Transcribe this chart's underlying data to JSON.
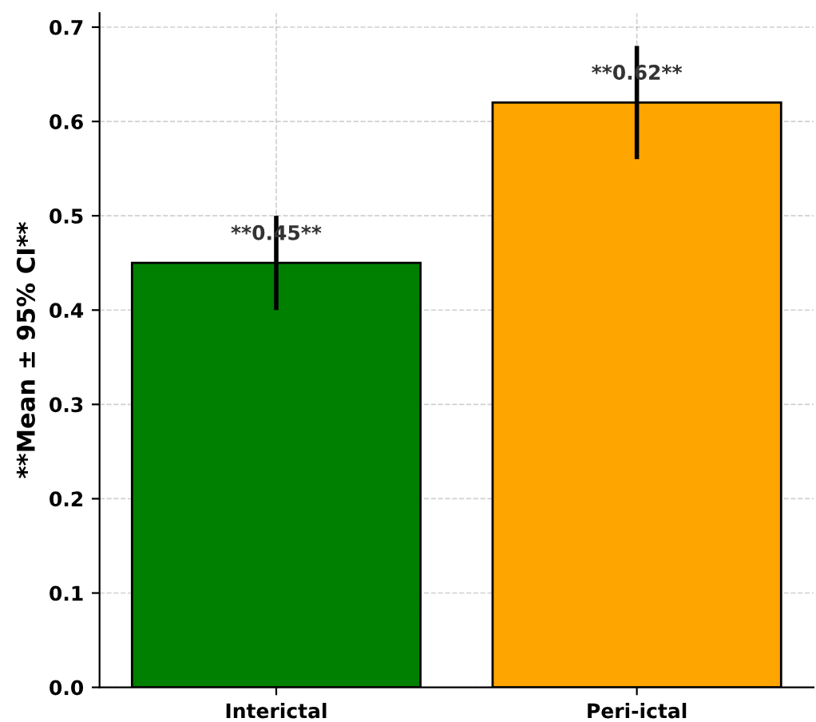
{
  "chart_data": {
    "type": "bar",
    "ylabel": "**Mean ± 95% CI**",
    "categories": [
      "Interictal",
      "Peri-ictal"
    ],
    "values": [
      0.45,
      0.62
    ],
    "colors": [
      "#008000",
      "#ffa500"
    ],
    "errors": [
      [
        0.4,
        0.5
      ],
      [
        0.56,
        0.68
      ]
    ],
    "value_labels": [
      "**0.45**",
      "**0.62**"
    ],
    "ylim": [
      0,
      0.715
    ],
    "yticks": [
      {
        "value": 0,
        "label": "0.0"
      },
      0.1,
      0.2,
      0.3,
      0.4,
      0.5,
      0.6,
      0.7
    ],
    "grid": true
  }
}
